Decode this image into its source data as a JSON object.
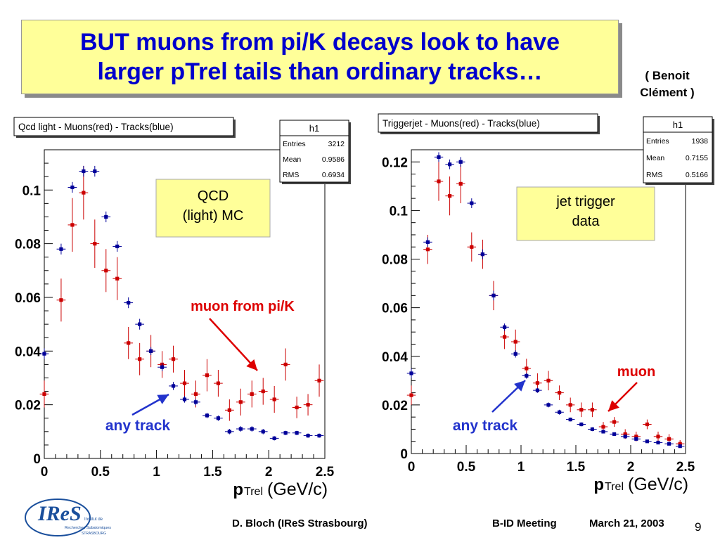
{
  "slide": {
    "title_line1": "BUT muons from pi/K decays look to have",
    "title_line2": "larger pTrel tails than ordinary tracks…",
    "credit_line1": "( Benoit",
    "credit_line2": "Clément )",
    "footer_author": "D. Bloch (IReS Strasbourg)",
    "footer_meeting": "B-ID Meeting",
    "footer_date": "March 21, 2003",
    "page_number": "9",
    "logo_text": "IReS",
    "logo_sub1": "Institut de",
    "logo_sub2": "Recherches Subatomiques",
    "logo_sub3": "STRASBOURG"
  },
  "colors": {
    "red": "#cc0000",
    "blue": "#000099",
    "title": "#0000cc",
    "highlight": "#ffff99"
  },
  "chart_data": [
    {
      "type": "scatter",
      "title": "Qcd light - Muons(red) - Tracks(blue)",
      "xlabel_main": "p",
      "xlabel_sub": "Trel",
      "xlabel_unit": "(GeV/c)",
      "xlim": [
        0,
        2.5
      ],
      "ylim": [
        0,
        0.115
      ],
      "x_ticks": [
        {
          "v": 0,
          "label": "0"
        },
        {
          "v": 0.5,
          "label": "0.5"
        },
        {
          "v": 1,
          "label": "1"
        },
        {
          "v": 1.5,
          "label": "1.5"
        },
        {
          "v": 2,
          "label": "2"
        },
        {
          "v": 2.5,
          "label": "2.5"
        }
      ],
      "y_ticks": [
        {
          "v": 0,
          "label": "0"
        },
        {
          "v": 0.02,
          "label": "0.02"
        },
        {
          "v": 0.04,
          "label": "0.04"
        },
        {
          "v": 0.06,
          "label": "0.06"
        },
        {
          "v": 0.08,
          "label": "0.08"
        },
        {
          "v": 0.1,
          "label": "0.1"
        }
      ],
      "stats": {
        "name": "h1",
        "rows": [
          [
            "Entries",
            "3212"
          ],
          [
            "Mean",
            "0.9586"
          ],
          [
            "RMS",
            "0.6934"
          ]
        ]
      },
      "label_box_lines": [
        "QCD",
        "(light) MC"
      ],
      "annotations": {
        "muon": "muon from pi/K",
        "track": "any track"
      },
      "series": [
        {
          "name": "Muons(red)",
          "color": "red",
          "halfwidth": 0.04,
          "x": [
            0.0,
            0.15,
            0.25,
            0.35,
            0.45,
            0.55,
            0.65,
            0.75,
            0.85,
            0.95,
            1.05,
            1.15,
            1.25,
            1.35,
            1.45,
            1.55,
            1.65,
            1.75,
            1.85,
            1.95,
            2.05,
            2.15,
            2.25,
            2.35,
            2.45
          ],
          "y": [
            0.024,
            0.059,
            0.087,
            0.099,
            0.08,
            0.07,
            0.067,
            0.043,
            0.037,
            0.04,
            0.035,
            0.037,
            0.028,
            0.024,
            0.031,
            0.028,
            0.018,
            0.021,
            0.024,
            0.025,
            0.022,
            0.035,
            0.019,
            0.02,
            0.029
          ],
          "err": [
            0.005,
            0.008,
            0.01,
            0.01,
            0.009,
            0.008,
            0.008,
            0.006,
            0.006,
            0.006,
            0.005,
            0.005,
            0.005,
            0.005,
            0.006,
            0.005,
            0.004,
            0.005,
            0.005,
            0.005,
            0.005,
            0.006,
            0.004,
            0.004,
            0.006
          ]
        },
        {
          "name": "Tracks(blue)",
          "color": "blue",
          "halfwidth": 0.04,
          "x": [
            0.0,
            0.15,
            0.25,
            0.35,
            0.45,
            0.55,
            0.65,
            0.75,
            0.85,
            0.95,
            1.05,
            1.15,
            1.25,
            1.35,
            1.45,
            1.55,
            1.65,
            1.75,
            1.85,
            1.95,
            2.05,
            2.15,
            2.25,
            2.35,
            2.45
          ],
          "y": [
            0.039,
            0.078,
            0.101,
            0.107,
            0.107,
            0.09,
            0.079,
            0.058,
            0.05,
            0.04,
            0.034,
            0.027,
            0.022,
            0.021,
            0.016,
            0.015,
            0.01,
            0.011,
            0.011,
            0.01,
            0.0075,
            0.0095,
            0.0095,
            0.0085,
            0.0085
          ],
          "err": [
            0.002,
            0.002,
            0.002,
            0.002,
            0.002,
            0.002,
            0.002,
            0.002,
            0.002,
            0.0015,
            0.0015,
            0.0015,
            0.0012,
            0.0012,
            0.001,
            0.001,
            0.001,
            0.001,
            0.001,
            0.001,
            0.0008,
            0.0008,
            0.0008,
            0.0008,
            0.0008
          ]
        }
      ]
    },
    {
      "type": "scatter",
      "title": "Triggerjet - Muons(red) - Tracks(blue)",
      "xlabel_main": "p",
      "xlabel_sub": "Trel",
      "xlabel_unit": "(GeV/c)",
      "xlim": [
        0,
        2.5
      ],
      "ylim": [
        0,
        0.125
      ],
      "x_ticks": [
        {
          "v": 0,
          "label": "0"
        },
        {
          "v": 0.5,
          "label": "0.5"
        },
        {
          "v": 1,
          "label": "1"
        },
        {
          "v": 1.5,
          "label": "1.5"
        },
        {
          "v": 2,
          "label": "2"
        },
        {
          "v": 2.5,
          "label": "2.5"
        }
      ],
      "y_ticks": [
        {
          "v": 0,
          "label": "0"
        },
        {
          "v": 0.02,
          "label": "0.02"
        },
        {
          "v": 0.04,
          "label": "0.04"
        },
        {
          "v": 0.06,
          "label": "0.06"
        },
        {
          "v": 0.08,
          "label": "0.08"
        },
        {
          "v": 0.1,
          "label": "0.1"
        },
        {
          "v": 0.12,
          "label": "0.12"
        }
      ],
      "stats": {
        "name": "h1",
        "rows": [
          [
            "Entries",
            "1938"
          ],
          [
            "Mean",
            "0.7155"
          ],
          [
            "RMS",
            "0.5166"
          ]
        ]
      },
      "label_box_lines": [
        "jet trigger",
        "data"
      ],
      "annotations": {
        "muon": "muon",
        "track": "any track"
      },
      "series": [
        {
          "name": "Muons(red)",
          "color": "red",
          "halfwidth": 0.04,
          "x": [
            0.0,
            0.15,
            0.25,
            0.35,
            0.45,
            0.55,
            0.65,
            0.75,
            0.85,
            0.95,
            1.05,
            1.15,
            1.25,
            1.35,
            1.45,
            1.55,
            1.65,
            1.75,
            1.85,
            1.95,
            2.05,
            2.15,
            2.25,
            2.35,
            2.45
          ],
          "y": [
            0.024,
            0.084,
            0.112,
            0.106,
            0.111,
            0.085,
            0.082,
            0.065,
            0.048,
            0.046,
            0.035,
            0.029,
            0.03,
            0.025,
            0.02,
            0.018,
            0.018,
            0.011,
            0.013,
            0.008,
            0.007,
            0.012,
            0.007,
            0.006,
            0.004
          ],
          "err": [
            0.004,
            0.006,
            0.008,
            0.008,
            0.008,
            0.006,
            0.006,
            0.006,
            0.005,
            0.005,
            0.004,
            0.004,
            0.004,
            0.003,
            0.003,
            0.003,
            0.003,
            0.002,
            0.002,
            0.002,
            0.002,
            0.002,
            0.002,
            0.002,
            0.0015
          ]
        },
        {
          "name": "Tracks(blue)",
          "color": "blue",
          "halfwidth": 0.04,
          "x": [
            0.0,
            0.15,
            0.25,
            0.35,
            0.45,
            0.55,
            0.65,
            0.75,
            0.85,
            0.95,
            1.05,
            1.15,
            1.25,
            1.35,
            1.45,
            1.55,
            1.65,
            1.75,
            1.85,
            1.95,
            2.05,
            2.15,
            2.25,
            2.35,
            2.45
          ],
          "y": [
            0.033,
            0.087,
            0.122,
            0.119,
            0.12,
            0.103,
            0.082,
            0.065,
            0.052,
            0.041,
            0.032,
            0.026,
            0.02,
            0.017,
            0.014,
            0.012,
            0.01,
            0.009,
            0.008,
            0.007,
            0.006,
            0.005,
            0.0045,
            0.004,
            0.003
          ],
          "err": [
            0.002,
            0.002,
            0.002,
            0.002,
            0.002,
            0.002,
            0.002,
            0.002,
            0.0015,
            0.0015,
            0.0012,
            0.001,
            0.001,
            0.001,
            0.0008,
            0.0008,
            0.0008,
            0.0007,
            0.0007,
            0.0006,
            0.0006,
            0.0005,
            0.0005,
            0.0005,
            0.0004
          ]
        }
      ]
    }
  ]
}
